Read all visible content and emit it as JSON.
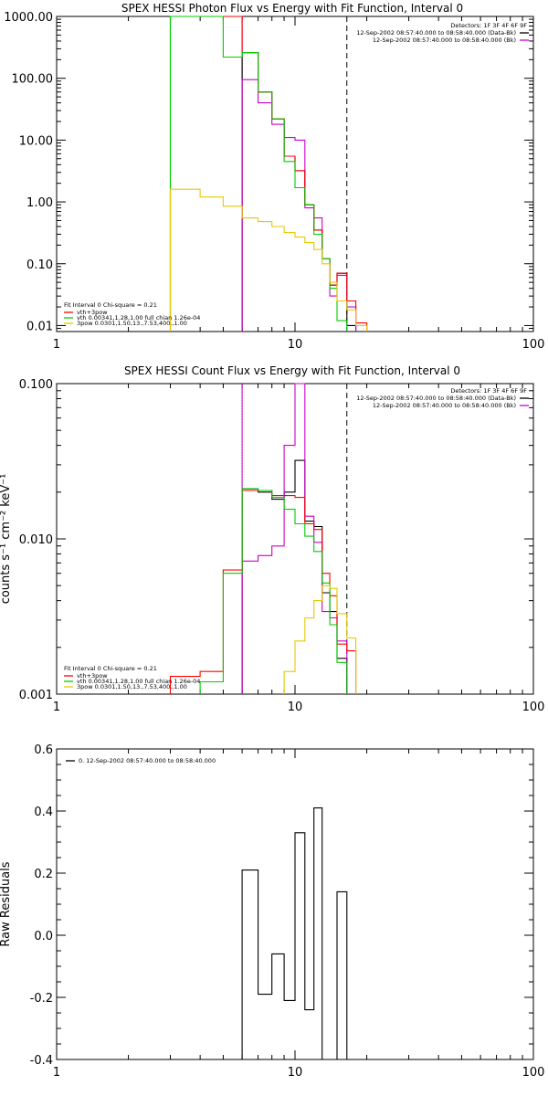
{
  "chart_data": [
    {
      "type": "line",
      "title": "SPEX HESSI Photon Flux vs Energy with Fit Function, Interval 0",
      "xscale": "log",
      "yscale": "log",
      "xlim": [
        1,
        100
      ],
      "ylim": [
        0.008,
        1000
      ],
      "xticks": [
        {
          "v": 1,
          "label": "1"
        },
        {
          "v": 10,
          "label": "10"
        },
        {
          "v": 100,
          "label": "100"
        }
      ],
      "yticks": [
        {
          "v": 1000,
          "label": "1000.00"
        },
        {
          "v": 100,
          "label": "100.00"
        },
        {
          "v": 10,
          "label": "10.00"
        },
        {
          "v": 1,
          "label": "1.00"
        },
        {
          "v": 0.1,
          "label": "0.10"
        },
        {
          "v": 0.01,
          "label": "0.01"
        }
      ],
      "vlines": [
        {
          "x": 6.0,
          "style": "dotted",
          "color": "#000000"
        },
        {
          "x": 6.0,
          "style": "solid",
          "color": "#cc00cc"
        },
        {
          "x": 16.5,
          "style": "dashed",
          "color": "#000000"
        }
      ],
      "info_lines": [
        "Detectors: 1F 3F 4F 6F 9F",
        "12-Sep-2002 08:57:40.000 to 08:58:40.000 (Data-Bk)",
        "12-Sep-2002 08:57:40.000 to 08:58:40.000 (Bk)"
      ],
      "info_colors": [
        "#000000",
        "#cc00cc"
      ],
      "fit_lines": [
        "Fit Interval 0   Chi-square = 0.21",
        "vth+3pow",
        "vth 0.00341,1.28,1.00  full chian 1.26e-04",
        "3pow 0.0301,1.50,13.,7.53,400.,1.00"
      ],
      "fit_colors": [
        "#ff0000",
        "#00cc00",
        "#e6c800"
      ],
      "series": [
        {
          "name": "Data-Bk",
          "color": "#000000",
          "edges": [
            6,
            7,
            8,
            9,
            10,
            11,
            12,
            13,
            14,
            15,
            16.5,
            18
          ],
          "values": [
            260,
            60,
            22,
            5.5,
            3.2,
            0.9,
            0.35,
            0.12,
            0.045,
            0.07,
            0.01
          ]
        },
        {
          "name": "Bk",
          "color": "#cc00cc",
          "edges": [
            6,
            7,
            8,
            9,
            10,
            11,
            12,
            13,
            14,
            15,
            16.5,
            18
          ],
          "values": [
            95,
            40,
            18,
            11,
            10,
            0.8,
            0.55,
            0.12,
            0.03,
            0.065,
            0.02
          ]
        },
        {
          "name": "vth+3pow",
          "color": "#ff0000",
          "edges": [
            3,
            6,
            7,
            8,
            9,
            10,
            11,
            12,
            13,
            14,
            15,
            16.5,
            18,
            20
          ],
          "values": [
            1000,
            260,
            60,
            22,
            5.5,
            3.2,
            0.9,
            0.35,
            0.12,
            0.045,
            0.07,
            0.025,
            0.011
          ]
        },
        {
          "name": "vth",
          "color": "#00cc00",
          "edges": [
            3,
            4,
            5,
            6,
            7,
            8,
            9,
            10,
            11,
            12,
            13,
            14,
            15,
            16.5
          ],
          "values": [
            1000,
            1000,
            220,
            260,
            60,
            22,
            4.5,
            1.7,
            0.9,
            0.3,
            0.12,
            0.04,
            0.012
          ]
        },
        {
          "name": "3pow",
          "color": "#e6c800",
          "edges": [
            3,
            4,
            5,
            6,
            7,
            8,
            9,
            10,
            11,
            12,
            13,
            14,
            15,
            16.5,
            18,
            20
          ],
          "values": [
            1.6,
            1.2,
            0.85,
            0.55,
            0.48,
            0.4,
            0.32,
            0.27,
            0.22,
            0.17,
            0.1,
            0.05,
            0.025,
            0.018,
            0.01
          ]
        }
      ]
    },
    {
      "type": "line",
      "title": "SPEX HESSI Count Flux vs Energy with Fit Function, Interval 0",
      "xscale": "log",
      "yscale": "log",
      "xlim": [
        1,
        100
      ],
      "ylim": [
        0.001,
        0.1
      ],
      "ylabel": "counts s⁻¹ cm⁻² keV⁻¹",
      "xticks": [
        {
          "v": 1,
          "label": "1"
        },
        {
          "v": 10,
          "label": "10"
        },
        {
          "v": 100,
          "label": "100"
        }
      ],
      "yticks": [
        {
          "v": 0.1,
          "label": "0.100"
        },
        {
          "v": 0.01,
          "label": "0.010"
        },
        {
          "v": 0.001,
          "label": "0.001"
        }
      ],
      "vlines": [
        {
          "x": 6.0,
          "style": "dotted",
          "color": "#000000"
        },
        {
          "x": 6.0,
          "style": "solid",
          "color": "#cc00cc"
        },
        {
          "x": 16.5,
          "style": "dashed",
          "color": "#000000"
        }
      ],
      "info_lines": [
        "Detectors: 1F 3F 4F 6F 9F",
        "12-Sep-2002 08:57:40.000 to 08:58:40.000 (Data-Bk)",
        "12-Sep-2002 08:57:40.000 to 08:58:40.000 (Bk)"
      ],
      "info_colors": [
        "#000000",
        "#cc00cc"
      ],
      "fit_lines": [
        "Fit Interval 0   Chi-square = 0.21",
        "vth+3pow",
        "vth 0.00341,1.28,1.00  full chian 1.26e-04",
        "3pow 0.0301,1.50,13.,7.53,400.,1.00"
      ],
      "fit_colors": [
        "#ff0000",
        "#00cc00",
        "#e6c800"
      ],
      "series": [
        {
          "name": "Data-Bk",
          "color": "#000000",
          "edges": [
            6,
            7,
            8,
            9,
            10,
            11,
            12,
            13,
            14,
            15,
            16.5
          ],
          "values": [
            0.021,
            0.02,
            0.018,
            0.02,
            0.032,
            0.013,
            0.012,
            0.0045,
            0.0034,
            0.0017
          ]
        },
        {
          "name": "Bk",
          "color": "#cc00cc",
          "edges": [
            6,
            7,
            8,
            9,
            10,
            11,
            12,
            13,
            14,
            15,
            16.5
          ],
          "values": [
            0.0072,
            0.0078,
            0.009,
            0.04,
            0.1,
            0.014,
            0.0095,
            0.0034,
            0.0031,
            0.0022
          ]
        },
        {
          "name": "vth+3pow",
          "color": "#ff0000",
          "edges": [
            3,
            4,
            5,
            6,
            7,
            8,
            9,
            10,
            11,
            12,
            13,
            14,
            15,
            16.5,
            18
          ],
          "values": [
            0.0013,
            0.0014,
            0.0063,
            0.0205,
            0.0205,
            0.019,
            0.019,
            0.0185,
            0.0125,
            0.0115,
            0.006,
            0.0043,
            0.0021,
            0.0019
          ]
        },
        {
          "name": "vth",
          "color": "#00cc00",
          "edges": [
            4,
            5,
            6,
            7,
            8,
            9,
            10,
            11,
            12,
            13,
            14,
            15,
            16.5
          ],
          "values": [
            0.0012,
            0.006,
            0.021,
            0.0205,
            0.0185,
            0.0155,
            0.0125,
            0.0104,
            0.0083,
            0.0052,
            0.0028,
            0.0016
          ]
        },
        {
          "name": "3pow",
          "color": "#e6c800",
          "edges": [
            9,
            10,
            11,
            12,
            13,
            14,
            15,
            16.5,
            18
          ],
          "values": [
            0.0014,
            0.0022,
            0.0031,
            0.004,
            0.005,
            0.0048,
            0.0033,
            0.0023
          ]
        }
      ]
    },
    {
      "type": "bar",
      "title": "",
      "xscale": "log",
      "yscale": "linear",
      "xlim": [
        1,
        100
      ],
      "ylim": [
        -0.4,
        0.6
      ],
      "ylabel": "Raw Residuals",
      "xticks": [
        {
          "v": 1,
          "label": "1"
        },
        {
          "v": 10,
          "label": "10"
        },
        {
          "v": 100,
          "label": "100"
        }
      ],
      "yticks": [
        {
          "v": 0.6,
          "label": "0.6"
        },
        {
          "v": 0.4,
          "label": "0.4"
        },
        {
          "v": 0.2,
          "label": "0.2"
        },
        {
          "v": 0.0,
          "label": "0.0"
        },
        {
          "v": -0.2,
          "label": "-0.2"
        },
        {
          "v": -0.4,
          "label": "-0.4"
        }
      ],
      "legend": "0. 12-Sep-2002 08:57:40.000 to 08:58:40.000",
      "series": [
        {
          "name": "",
          "color": "#000000",
          "edges": [
            6,
            7,
            8,
            9,
            10,
            11,
            12,
            13,
            14,
            15,
            16.5
          ],
          "values": [
            0.21,
            -0.19,
            -0.06,
            -0.21,
            0.33,
            -0.24,
            0.41,
            -0.4,
            -0.4,
            0.14
          ]
        }
      ]
    }
  ]
}
